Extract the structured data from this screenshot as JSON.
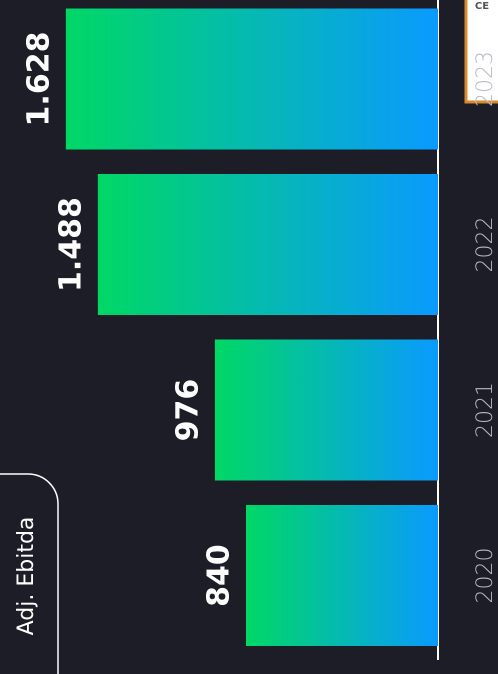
{
  "chart_data": {
    "type": "bar",
    "title": "Adj. Ebitda",
    "logo": "CE",
    "categories": [
      "2020",
      "2021",
      "2022",
      "2023"
    ],
    "values": [
      840,
      976,
      1488,
      1628
    ],
    "value_labels": [
      "840",
      "976",
      "1.488",
      "1.628"
    ],
    "gradient": [
      "#00d865",
      "#0a9aff"
    ]
  }
}
